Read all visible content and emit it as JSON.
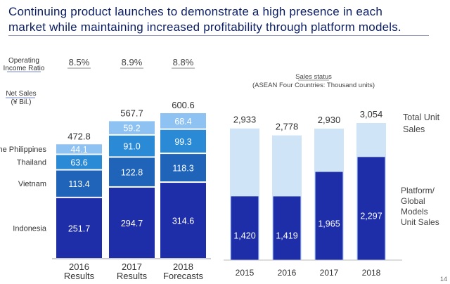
{
  "headline": {
    "line1": "Continuing product launches to demonstrate a high presence in each",
    "line2": "market while maintaining increased profitability through platform models."
  },
  "page_number": "14",
  "colors": {
    "indonesia": "#1e2ea8",
    "vietnam": "#1f64b9",
    "thailand": "#2a8ad6",
    "philippines": "#8ec2f2",
    "total_unit": "#cfe4f7",
    "platform": "#1e2ea8",
    "underline": "#7a8fcf"
  },
  "chart_data": [
    {
      "type": "bar",
      "stacked": true,
      "title": "",
      "categories": [
        "2016\nResults",
        "2017\nResults",
        "2018\nForecasts"
      ],
      "series": [
        {
          "name": "Indonesia",
          "values": [
            251.7,
            294.7,
            314.6
          ]
        },
        {
          "name": "Vietnam",
          "values": [
            113.4,
            122.8,
            118.3
          ]
        },
        {
          "name": "Thailand",
          "values": [
            63.6,
            91.0,
            99.3
          ]
        },
        {
          "name": "The Philippines",
          "values": [
            44.1,
            59.2,
            68.4
          ]
        }
      ],
      "totals": [
        "472.8",
        "567.7",
        "600.6"
      ],
      "value_labels": [
        [
          "251.7",
          "294.7",
          "314.6"
        ],
        [
          "113.4",
          "122.8",
          "118.3"
        ],
        [
          "63.6",
          "91.0",
          "99.3"
        ],
        [
          "44.1",
          "59.2",
          "68.4"
        ]
      ],
      "operating_income_ratio": [
        "8.5%",
        "8.9%",
        "8.8%"
      ],
      "row_labels": {
        "operating_income_ratio": "Operating\nIncome Ratio",
        "net_sales": "Net Sales\n(¥ Bil.)"
      },
      "ylim": [
        0,
        600.6
      ]
    },
    {
      "type": "bar",
      "title": "Sales status",
      "subtitle": "(ASEAN Four Countries: Thousand units)",
      "categories": [
        "2015",
        "2016",
        "2017",
        "2018"
      ],
      "series": [
        {
          "name": "Total Unit Sales",
          "values": [
            2933,
            2778,
            2930,
            3054
          ]
        },
        {
          "name": "Platform/ Global Models Unit Sales",
          "values": [
            1420,
            1419,
            1965,
            2297
          ]
        }
      ],
      "value_labels": [
        [
          "2,933",
          "2,778",
          "2,930",
          "3,054"
        ],
        [
          "1,420",
          "1,419",
          "1,965",
          "2,297"
        ]
      ],
      "legend": {
        "total": "Total Unit\nSales",
        "platform": "Platform/\nGlobal\nModels\nUnit Sales"
      },
      "ylim": [
        0,
        3054
      ]
    }
  ]
}
